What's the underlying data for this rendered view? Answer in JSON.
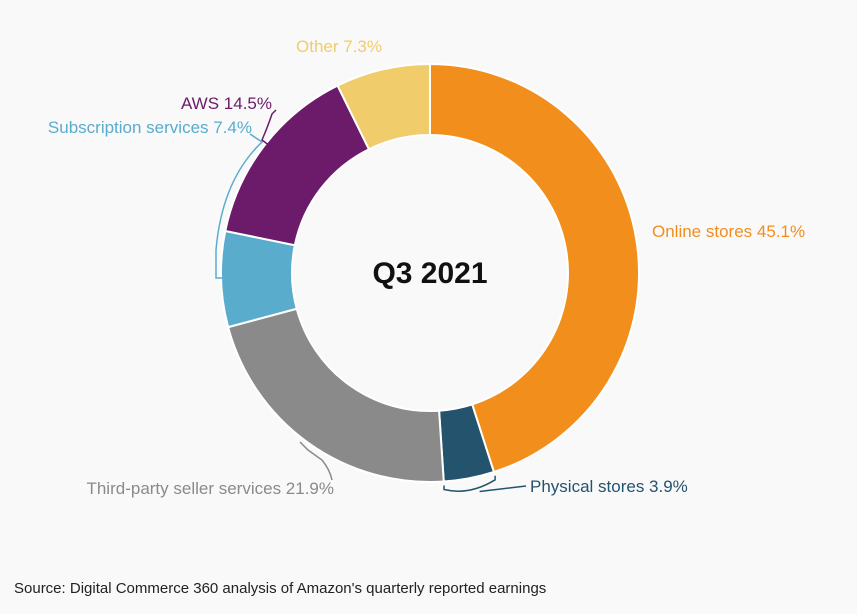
{
  "colors": {
    "background": "#f9f9f9"
  },
  "chart_data": {
    "type": "pie",
    "donut": true,
    "center_label": "Q3 2021",
    "slices": [
      {
        "name": "Online stores",
        "value": 45.1,
        "label": "Online stores 45.1%",
        "color": "#f28e1c"
      },
      {
        "name": "Physical stores",
        "value": 3.9,
        "label": "Physical stores 3.9%",
        "color": "#23536d"
      },
      {
        "name": "Third-party seller services",
        "value": 21.9,
        "label": "Third-party seller services 21.9%",
        "color": "#8a8a8a"
      },
      {
        "name": "Subscription services",
        "value": 7.4,
        "label": "Subscription services 7.4%",
        "color": "#5aaccd"
      },
      {
        "name": "AWS",
        "value": 14.5,
        "label": "AWS 14.5%",
        "color": "#6b1b6a"
      },
      {
        "name": "Other",
        "value": 7.3,
        "label": "Other 7.3%",
        "color": "#f1cc6b"
      }
    ],
    "label_colors": [
      "#f28e1c",
      "#23536d",
      "#8a8a8a",
      "#5aaccd",
      "#6b1b6a",
      "#f1cc6b"
    ]
  },
  "source": "Source: Digital Commerce 360 analysis of Amazon's quarterly reported earnings"
}
